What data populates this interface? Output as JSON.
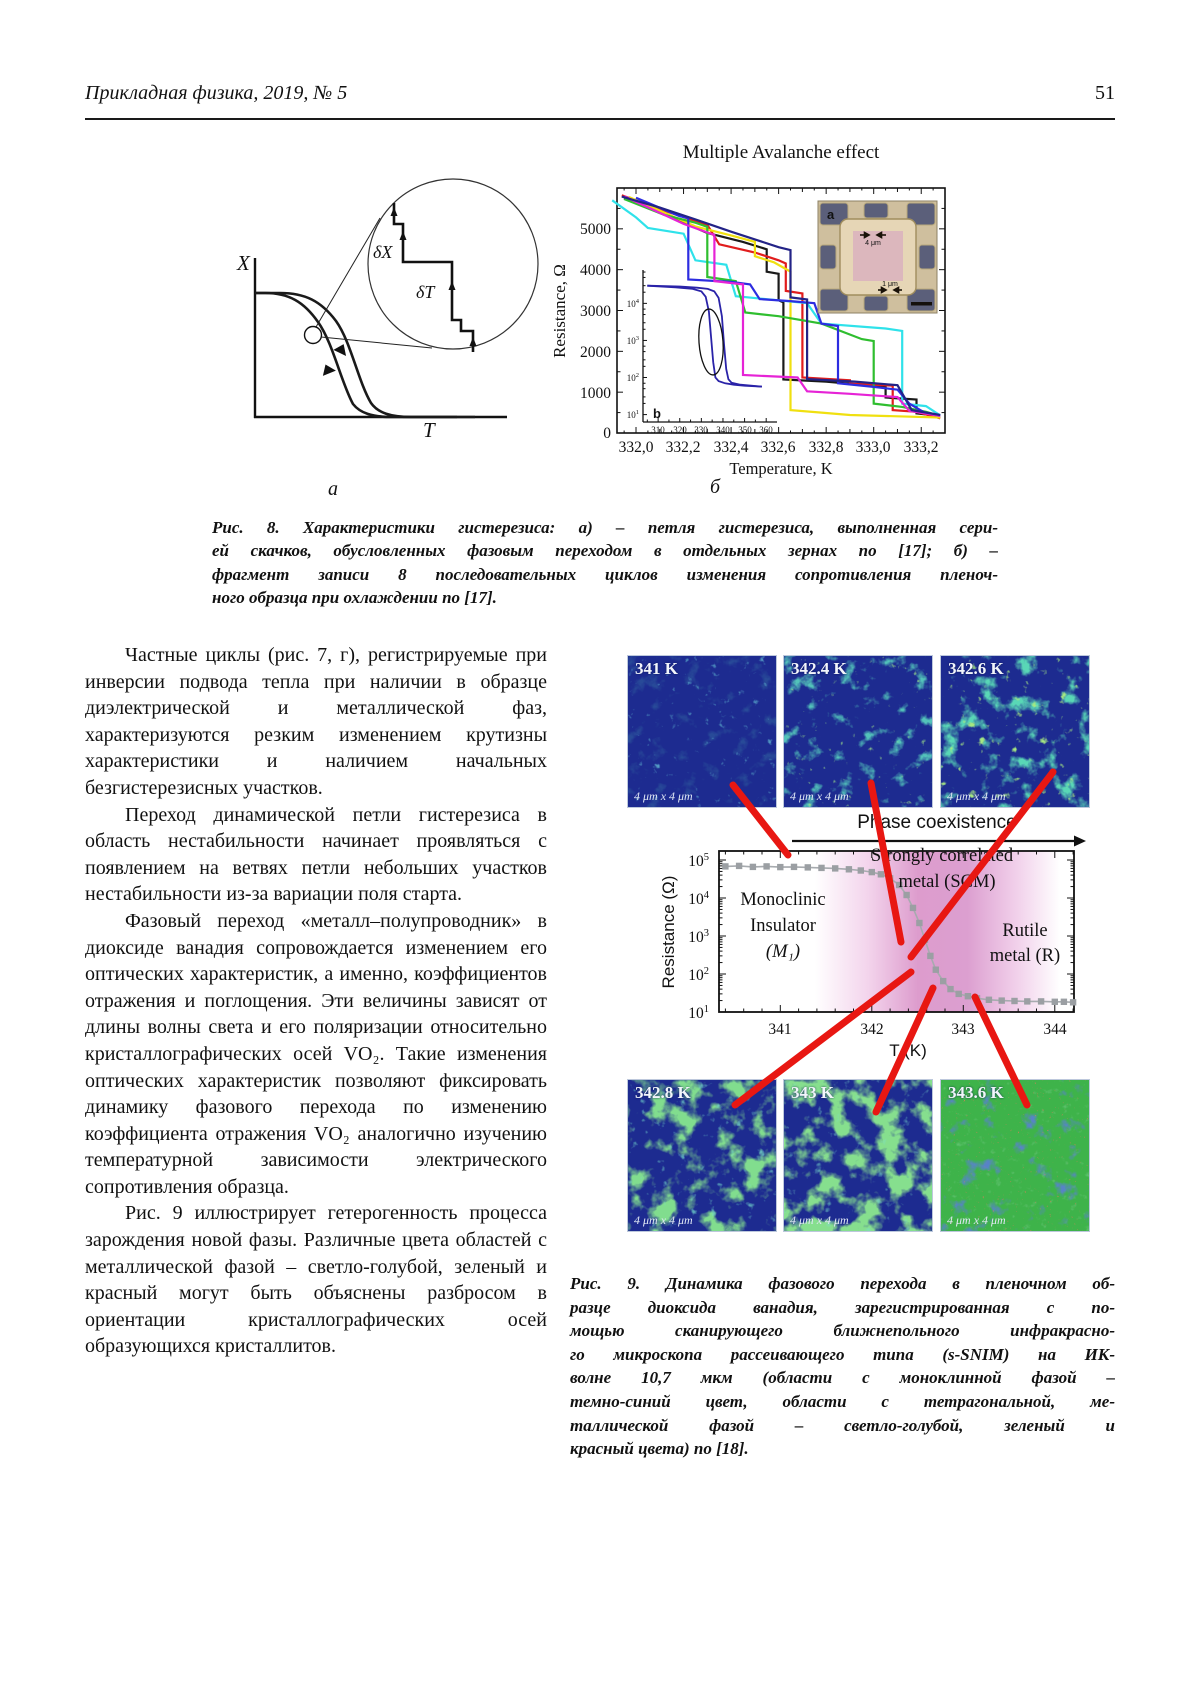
{
  "header": {
    "journal": "Прикладная физика, 2019, № 5",
    "page": "51"
  },
  "fig8": {
    "label_a": "а",
    "label_b": "б",
    "panel_a": {
      "x_axis_label": "X",
      "t_axis_label": "T",
      "delta_x": "δX",
      "delta_t": "δT"
    },
    "panel_b": {
      "title": "Multiple Avalanche effect",
      "y_label": "Resistance, Ω",
      "x_label": "Temperature, K",
      "y_ticks": [
        "5000",
        "4000",
        "3000",
        "2000",
        "1000",
        "0"
      ],
      "x_ticks": [
        "332,0",
        "332,2",
        "332,4",
        "332,6",
        "332,8",
        "333,0",
        "333,2"
      ],
      "inset_photo_label": "a",
      "photo_dim_top": "4 μm",
      "photo_dim_bottom": "1 μm",
      "inset_plot_label": "b",
      "inset_x_ticks": [
        "310",
        "320",
        "330",
        "340",
        "350",
        "360"
      ],
      "inset_y_ticks": [
        {
          "b": "10",
          "e": "4"
        },
        {
          "b": "10",
          "e": "3"
        },
        {
          "b": "10",
          "e": "2"
        },
        {
          "b": "10",
          "e": "1"
        }
      ]
    },
    "caption_lines": [
      "Рис. 8. Характеристики гистерезиса: а) – петля гистерезиса, выполненная сери-",
      "ей скачков, обусловленных фазовым переходом в отдельных зернах по [17]; б) –",
      "фрагмент записи 8 последовательных циклов изменения сопротивления пленоч-",
      "ного образца при охлаждении по [17]."
    ]
  },
  "left_column": {
    "paragraphs": [
      "Частные циклы (рис. 7, г), регистрируемые при инверсии подвода тепла при наличии в образце диэлектрической и металлической фаз, характеризуются резким изменением крутизны характеристики и наличием начальных безгистерезисных участков.",
      "Переход динамической петли гистерезиса в область нестабильности начинает проявляться с появлением на ветвях петли небольших участков нестабильности из-за вариации поля старта.",
      "Фазовый переход «металл–полупроводник» в диоксиде ванадия сопровождается изменением его оптических характеристик, а именно, коэффициентов отражения и поглощения. Эти величины зависят от длины волны света и его поляризации относительно кристаллографических осей VO₂. Такие изменения оптических характеристик позволяют фиксировать динамику фазового перехода по изменению коэффициента отражения VO₂ аналогично изучению температурной зависимости электрического сопротивления образца.",
      "Рис. 9 иллюстрирует гетерогенность процесса зарождения новой фазы. Различные цвета областей с металлической фазой – светло-голубой, зеленый и красный могут быть объяснены разбросом в ориентации кристаллографических осей образующихся кристаллитов."
    ]
  },
  "fig9": {
    "top_images": [
      {
        "temp": "341 K",
        "size": "4 μm x 4 μm"
      },
      {
        "temp": "342.4 K",
        "size": "4 μm x 4 μm"
      },
      {
        "temp": "342.6 K",
        "size": "4 μm x 4 μm"
      }
    ],
    "bottom_images": [
      {
        "temp": "342.8 K",
        "size": "4 μm x 4 μm"
      },
      {
        "temp": "343 K",
        "size": "4 μm x 4 μm"
      },
      {
        "temp": "343.6 K",
        "size": "4 μm x 4 μm"
      }
    ],
    "plot": {
      "phase_label": "Phase coexistence",
      "y_label": "Resistance (Ω)",
      "x_label": "T (K)",
      "x_ticks": [
        "341",
        "342",
        "343",
        "344"
      ],
      "y_ticks": [
        {
          "b": "10",
          "e": "5"
        },
        {
          "b": "10",
          "e": "4"
        },
        {
          "b": "10",
          "e": "3"
        },
        {
          "b": "10",
          "e": "2"
        },
        {
          "b": "10",
          "e": "1"
        }
      ],
      "mono_lines": [
        "Monoclinic",
        "Insulator",
        "(M₁)"
      ],
      "scm_lines": [
        "Strongly correlated",
        "metal (SCM)"
      ],
      "rutile_lines": [
        "Rutile",
        "metal (R)"
      ]
    },
    "caption_lines": [
      "Рис. 9. Динамика фазового перехода в пленочном об-",
      "разце диоксида ванадия, зарегистрированная с по-",
      "мощью сканирующего ближнепольного инфракрасно-",
      "го микроскопа рассеивающего типа (s-SNIM) на ИК-",
      "волне 10,7 мкм (области с моноклинной фазой –",
      "темно-синий цвет, области с тетрагональной, ме-",
      "таллической фазой – светло-голубой, зеленый и",
      "красный цвета) по [18]."
    ]
  },
  "colors": {
    "annotation_red": "#e81712",
    "insulator_blue": "#1d2b90",
    "metal_green": "#3eb34a",
    "coexistence_pink": "#dd9ccd",
    "marker_gray": "#9b9fa3",
    "inset_loop_blue": "#2a23a8"
  },
  "chart_data": [
    {
      "id": "fig8b_main",
      "type": "line",
      "title": "Multiple Avalanche effect",
      "xlabel": "Temperature, K",
      "ylabel": "Resistance, Ω",
      "xlim": [
        331.92,
        333.3
      ],
      "ylim": [
        0,
        6000
      ],
      "x_tick_values": [
        332.0,
        332.2,
        332.4,
        332.6,
        332.8,
        333.0,
        333.2
      ],
      "y_tick_values": [
        0,
        1000,
        2000,
        3000,
        4000,
        5000
      ],
      "series": [
        {
          "name": "cycle-black",
          "color": "#1a1a1a",
          "points": [
            [
              331.95,
              5750
            ],
            [
              332.2,
              5150
            ],
            [
              332.3,
              4900
            ],
            [
              332.45,
              4680
            ],
            [
              332.55,
              4500
            ],
            [
              332.55,
              3950
            ],
            [
              332.6,
              3900
            ],
            [
              332.6,
              3250
            ],
            [
              332.62,
              3200
            ],
            [
              332.62,
              1310
            ],
            [
              332.8,
              1260
            ],
            [
              332.95,
              1180
            ],
            [
              333.05,
              1120
            ],
            [
              333.05,
              870
            ],
            [
              333.18,
              820
            ],
            [
              333.18,
              480
            ],
            [
              333.28,
              420
            ]
          ]
        },
        {
          "name": "cycle-red",
          "color": "#e11d1d",
          "points": [
            [
              331.94,
              5820
            ],
            [
              332.1,
              5480
            ],
            [
              332.3,
              5100
            ],
            [
              332.35,
              4620
            ],
            [
              332.5,
              4420
            ],
            [
              332.6,
              4230
            ],
            [
              332.63,
              4150
            ],
            [
              332.63,
              3480
            ],
            [
              332.7,
              3420
            ],
            [
              332.7,
              1360
            ],
            [
              332.9,
              1290
            ],
            [
              332.9,
              1210
            ],
            [
              333.08,
              1160
            ],
            [
              333.08,
              560
            ],
            [
              333.18,
              520
            ],
            [
              333.28,
              360
            ]
          ]
        },
        {
          "name": "cycle-yellow",
          "color": "#f0e010",
          "points": [
            [
              331.97,
              5780
            ],
            [
              332.25,
              5060
            ],
            [
              332.4,
              4840
            ],
            [
              332.5,
              4680
            ],
            [
              332.5,
              4330
            ],
            [
              332.58,
              4180
            ],
            [
              332.65,
              3950
            ],
            [
              332.65,
              560
            ],
            [
              332.78,
              500
            ],
            [
              332.9,
              440
            ],
            [
              333.1,
              410
            ],
            [
              333.28,
              380
            ]
          ]
        },
        {
          "name": "cycle-cyan",
          "color": "#2fe2ea",
          "points": [
            [
              331.9,
              5700
            ],
            [
              332.0,
              5280
            ],
            [
              332.05,
              5020
            ],
            [
              332.2,
              4880
            ],
            [
              332.25,
              4230
            ],
            [
              332.38,
              4120
            ],
            [
              332.42,
              3350
            ],
            [
              332.6,
              3250
            ],
            [
              332.72,
              3180
            ],
            [
              332.78,
              2680
            ],
            [
              333.05,
              2560
            ],
            [
              333.12,
              2500
            ],
            [
              333.12,
              720
            ],
            [
              333.22,
              660
            ],
            [
              333.28,
              430
            ]
          ]
        },
        {
          "name": "cycle-green",
          "color": "#2fbe2f",
          "points": [
            [
              331.95,
              5730
            ],
            [
              332.12,
              5340
            ],
            [
              332.25,
              5150
            ],
            [
              332.3,
              5050
            ],
            [
              332.3,
              3820
            ],
            [
              332.42,
              3720
            ],
            [
              332.46,
              2950
            ],
            [
              332.6,
              2860
            ],
            [
              332.78,
              2680
            ],
            [
              332.95,
              2300
            ],
            [
              333.0,
              2250
            ],
            [
              333.0,
              720
            ],
            [
              333.12,
              640
            ],
            [
              333.22,
              520
            ],
            [
              333.28,
              420
            ]
          ]
        },
        {
          "name": "cycle-blue",
          "color": "#2d2de0",
          "points": [
            [
              332.0,
              5760
            ],
            [
              332.18,
              5320
            ],
            [
              332.22,
              5260
            ],
            [
              332.22,
              3760
            ],
            [
              332.4,
              3700
            ],
            [
              332.48,
              3640
            ],
            [
              332.52,
              3280
            ],
            [
              332.65,
              3230
            ],
            [
              332.75,
              3180
            ],
            [
              332.78,
              2680
            ],
            [
              332.85,
              2620
            ],
            [
              332.85,
              1220
            ],
            [
              333.0,
              1130
            ],
            [
              333.1,
              1060
            ],
            [
              333.15,
              720
            ],
            [
              333.22,
              480
            ],
            [
              333.28,
              420
            ]
          ]
        },
        {
          "name": "cycle-magenta",
          "color": "#e623d6",
          "points": [
            [
              331.95,
              5800
            ],
            [
              332.2,
              5120
            ],
            [
              332.33,
              4850
            ],
            [
              332.33,
              3720
            ],
            [
              332.45,
              3640
            ],
            [
              332.45,
              1420
            ],
            [
              332.68,
              1360
            ],
            [
              332.72,
              1020
            ],
            [
              332.9,
              960
            ],
            [
              333.1,
              880
            ],
            [
              333.15,
              540
            ],
            [
              333.28,
              420
            ]
          ]
        },
        {
          "name": "cycle-navy",
          "color": "#232387",
          "points": [
            [
              331.94,
              5790
            ],
            [
              332.1,
              5520
            ],
            [
              332.25,
              5230
            ],
            [
              332.4,
              4930
            ],
            [
              332.5,
              4740
            ],
            [
              332.6,
              4550
            ],
            [
              332.65,
              4480
            ],
            [
              332.65,
              3320
            ],
            [
              332.72,
              3270
            ],
            [
              332.72,
              1320
            ],
            [
              332.92,
              1260
            ],
            [
              333.1,
              1170
            ],
            [
              333.16,
              560
            ],
            [
              333.28,
              440
            ]
          ]
        }
      ]
    },
    {
      "id": "fig8b_inset",
      "type": "line",
      "yscale": "log",
      "xlim": [
        303,
        365
      ],
      "x_tick_values": [
        310,
        320,
        330,
        340,
        350,
        360
      ],
      "y_tick_labels": [
        "10^4",
        "10^3",
        "10^2",
        "10^1"
      ],
      "series": [
        {
          "name": "cooling-branch",
          "color": "#2a23a8",
          "points": [
            [
              305,
              30000
            ],
            [
              318,
              27000
            ],
            [
              326,
              24500
            ],
            [
              330,
              21000
            ],
            [
              332,
              15000
            ],
            [
              333.5,
              6000
            ],
            [
              334.5,
              1200
            ],
            [
              335.5,
              260
            ],
            [
              336.5,
              100
            ],
            [
              338,
              80
            ],
            [
              341,
              70
            ],
            [
              345,
              64
            ],
            [
              350,
              60
            ],
            [
              358,
              57
            ]
          ]
        },
        {
          "name": "heating-branch",
          "color": "#2a23a8",
          "points": [
            [
              305,
              30000
            ],
            [
              320,
              28500
            ],
            [
              328,
              26500
            ],
            [
              333,
              24500
            ],
            [
              336,
              21000
            ],
            [
              338,
              14000
            ],
            [
              339.5,
              4500
            ],
            [
              340.5,
              800
            ],
            [
              341.5,
              170
            ],
            [
              342.5,
              90
            ],
            [
              344,
              72
            ],
            [
              348,
              64
            ],
            [
              353,
              60
            ],
            [
              358,
              57
            ]
          ]
        }
      ]
    },
    {
      "id": "fig9_rt",
      "type": "scatter",
      "xlabel": "T (K)",
      "ylabel": "Resistance (Ω)",
      "yscale": "log",
      "x_tick_values": [
        341,
        342,
        343,
        344
      ],
      "y_tick_labels": [
        "10^5",
        "10^4",
        "10^3",
        "10^2",
        "10^1"
      ],
      "points": [
        [
          340.4,
          68000
        ],
        [
          340.55,
          70000
        ],
        [
          340.7,
          66000
        ],
        [
          340.85,
          68000
        ],
        [
          341.0,
          65000
        ],
        [
          341.15,
          66000
        ],
        [
          341.3,
          64000
        ],
        [
          341.45,
          62000
        ],
        [
          341.6,
          60000
        ],
        [
          341.75,
          57000
        ],
        [
          341.88,
          53000
        ],
        [
          342.0,
          48000
        ],
        [
          342.1,
          42000
        ],
        [
          342.2,
          33000
        ],
        [
          342.3,
          22000
        ],
        [
          342.38,
          12000
        ],
        [
          342.45,
          5500
        ],
        [
          342.52,
          2200
        ],
        [
          342.58,
          800
        ],
        [
          342.64,
          300
        ],
        [
          342.7,
          130
        ],
        [
          342.78,
          65
        ],
        [
          342.86,
          40
        ],
        [
          342.95,
          30
        ],
        [
          343.05,
          26
        ],
        [
          343.15,
          23
        ],
        [
          343.28,
          21
        ],
        [
          343.42,
          20
        ],
        [
          343.56,
          19.5
        ],
        [
          343.7,
          19
        ],
        [
          343.85,
          19
        ],
        [
          344.0,
          18.5
        ],
        [
          344.1,
          18.5
        ],
        [
          344.2,
          18
        ]
      ]
    }
  ]
}
